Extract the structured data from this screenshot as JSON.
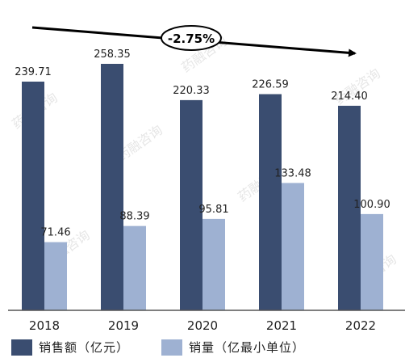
{
  "colors": {
    "sales": "#3A4D70",
    "volume": "#9EB1D2",
    "axis": "#555555",
    "text": "#222222",
    "trend_arrow": "#000000",
    "watermark": "#E6E6E6"
  },
  "chart_data": {
    "type": "bar",
    "categories": [
      "2018",
      "2019",
      "2020",
      "2021",
      "2022"
    ],
    "series": [
      {
        "name": "销售额（亿元）",
        "values": [
          239.71,
          258.35,
          220.33,
          226.59,
          214.4
        ],
        "labels": [
          "239.71",
          "258.35",
          "220.33",
          "226.59",
          "214.40"
        ]
      },
      {
        "name": "销量（亿最小单位）",
        "values": [
          71.46,
          88.39,
          95.81,
          133.48,
          100.9
        ],
        "labels": [
          "71.46",
          "88.39",
          "95.81",
          "133.48",
          "100.90"
        ]
      }
    ],
    "ylim": [
      0,
      265
    ],
    "grid": false,
    "legend_position": "bottom-left",
    "annotation": "-2.75%"
  },
  "watermark_text": "药融咨询"
}
